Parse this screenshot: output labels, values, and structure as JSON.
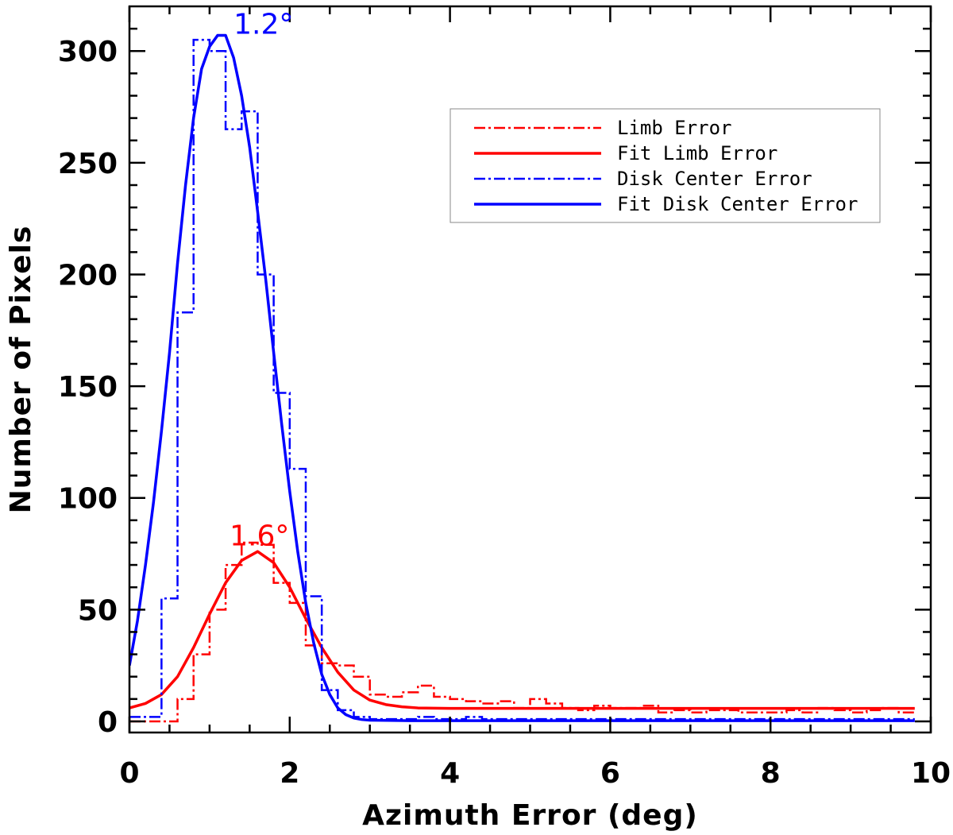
{
  "chart_data": {
    "type": "line",
    "title": "",
    "xlabel": "Azimuth Error (deg)",
    "ylabel": "Number of Pixels",
    "xlim": [
      0,
      10
    ],
    "ylim": [
      -5,
      320
    ],
    "x_ticks": [
      0,
      2,
      4,
      6,
      8,
      10
    ],
    "x_tick_labels": [
      "0",
      "2",
      "4",
      "6",
      "8",
      "10"
    ],
    "y_ticks": [
      0,
      50,
      100,
      150,
      200,
      250,
      300
    ],
    "y_tick_labels": [
      "0",
      "50",
      "100",
      "150",
      "200",
      "250",
      "300"
    ],
    "grid": false,
    "legend_position": "top-right",
    "bin_width": 0.2,
    "series": [
      {
        "name": "Limb Error",
        "style": "histogram-dashdot",
        "color": "#ff0000",
        "x": [
          0,
          0.2,
          0.4,
          0.6,
          0.8,
          1.0,
          1.2,
          1.4,
          1.6,
          1.8,
          2.0,
          2.2,
          2.4,
          2.6,
          2.8,
          3.0,
          3.2,
          3.4,
          3.6,
          3.8,
          4.0,
          4.2,
          4.4,
          4.6,
          4.8,
          5.0,
          5.2,
          5.4,
          5.6,
          5.8,
          6.0,
          6.2,
          6.4,
          6.6,
          6.8,
          7.0,
          7.2,
          7.4,
          7.6,
          7.8,
          8.0,
          8.2,
          8.4,
          8.6,
          8.8,
          9.0,
          9.2,
          9.4,
          9.6
        ],
        "values": [
          0,
          0,
          0,
          10,
          30,
          50,
          70,
          80,
          79,
          62,
          53,
          34,
          26,
          25,
          20,
          12,
          11,
          13,
          16,
          11,
          10,
          9,
          8,
          9,
          6,
          10,
          8,
          6,
          5,
          7,
          6,
          6,
          7,
          4,
          5,
          4,
          5,
          5,
          4,
          4,
          4,
          5,
          4,
          6,
          5,
          4,
          5,
          6,
          4
        ]
      },
      {
        "name": "Fit Limb Error",
        "style": "line",
        "color": "#ff0000",
        "x": [
          0,
          0.2,
          0.4,
          0.6,
          0.8,
          1.0,
          1.2,
          1.4,
          1.6,
          1.8,
          2.0,
          2.2,
          2.4,
          2.6,
          2.8,
          3.0,
          3.2,
          3.4,
          3.6,
          4.0,
          5.0,
          6.0,
          7.0,
          8.0,
          9.0,
          9.8
        ],
        "values": [
          6,
          8,
          12,
          20,
          33,
          48,
          62,
          72,
          76,
          71,
          60,
          46,
          33,
          22,
          14,
          9.5,
          7.5,
          6.5,
          6,
          5.8,
          5.8,
          5.8,
          5.8,
          5.8,
          5.8,
          5.8
        ]
      },
      {
        "name": "Disk Center Error",
        "style": "histogram-dashdot",
        "color": "#0000ff",
        "x": [
          0,
          0.2,
          0.4,
          0.6,
          0.8,
          1.0,
          1.2,
          1.4,
          1.6,
          1.8,
          2.0,
          2.2,
          2.4,
          2.6,
          2.8,
          3.0,
          3.2,
          3.4,
          3.6,
          3.8,
          4.0,
          4.2,
          4.4,
          4.6,
          4.8,
          5.0,
          5.2,
          5.4,
          5.6,
          5.8,
          6.0,
          6.2,
          6.4,
          6.6,
          6.8,
          7.0,
          7.2,
          7.4,
          7.6,
          7.8,
          8.0,
          8.2,
          8.4,
          8.6,
          8.8,
          9.0,
          9.2,
          9.4,
          9.6
        ],
        "values": [
          2,
          2,
          55,
          183,
          305,
          300,
          265,
          273,
          200,
          147,
          113,
          56,
          14,
          5,
          2,
          1,
          1,
          1,
          2,
          1,
          1,
          2,
          1,
          1,
          1,
          1,
          1,
          1,
          1,
          1,
          1,
          1,
          1,
          1,
          1,
          1,
          1,
          1,
          1,
          1,
          1,
          1,
          1,
          1,
          1,
          1,
          1,
          1,
          1
        ]
      },
      {
        "name": "Fit Disk Center Error",
        "style": "line",
        "color": "#0000ff",
        "x": [
          0,
          0.1,
          0.2,
          0.3,
          0.4,
          0.5,
          0.6,
          0.7,
          0.8,
          0.9,
          1.0,
          1.1,
          1.2,
          1.3,
          1.4,
          1.5,
          1.6,
          1.7,
          1.8,
          1.9,
          2.0,
          2.1,
          2.2,
          2.3,
          2.4,
          2.5,
          2.6,
          2.7,
          2.8,
          2.9,
          3.0,
          3.5,
          4.0,
          5.0,
          6.0,
          7.0,
          8.0,
          9.0,
          9.8
        ],
        "values": [
          25,
          45,
          70,
          98,
          130,
          165,
          205,
          240,
          270,
          292,
          302,
          307,
          307,
          297,
          280,
          257,
          228,
          198,
          165,
          133,
          103,
          76,
          53,
          35,
          21,
          12,
          6,
          3,
          1.5,
          0.8,
          0.5,
          0.3,
          0.3,
          0.3,
          0.3,
          0.3,
          0.3,
          0.3,
          0.3
        ]
      }
    ],
    "annotations": [
      {
        "text": "1.2°",
        "color": "#0000ff",
        "x": 1.3,
        "y": 312
      },
      {
        "text": "1.6°",
        "color": "#ff0000",
        "x": 1.25,
        "y": 83
      }
    ]
  }
}
